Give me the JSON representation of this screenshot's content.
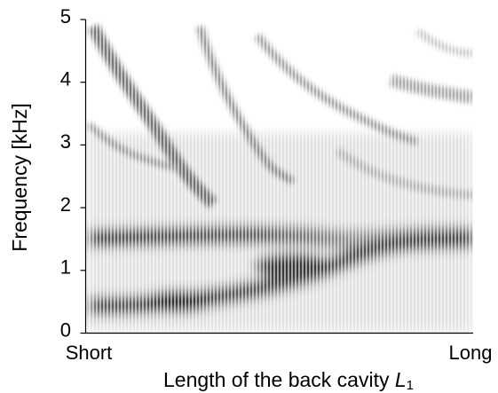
{
  "chart_data": {
    "type": "spectrogram",
    "ylabel": "Frequency [kHz]",
    "xlabel": {
      "text": "Length of the back cavity ",
      "symbol": "L",
      "subscript": "1"
    },
    "x_labels": [
      "Short",
      "Long"
    ],
    "ylim": [
      0,
      5
    ],
    "yticks": [
      0,
      1,
      2,
      3,
      4,
      5
    ]
  }
}
